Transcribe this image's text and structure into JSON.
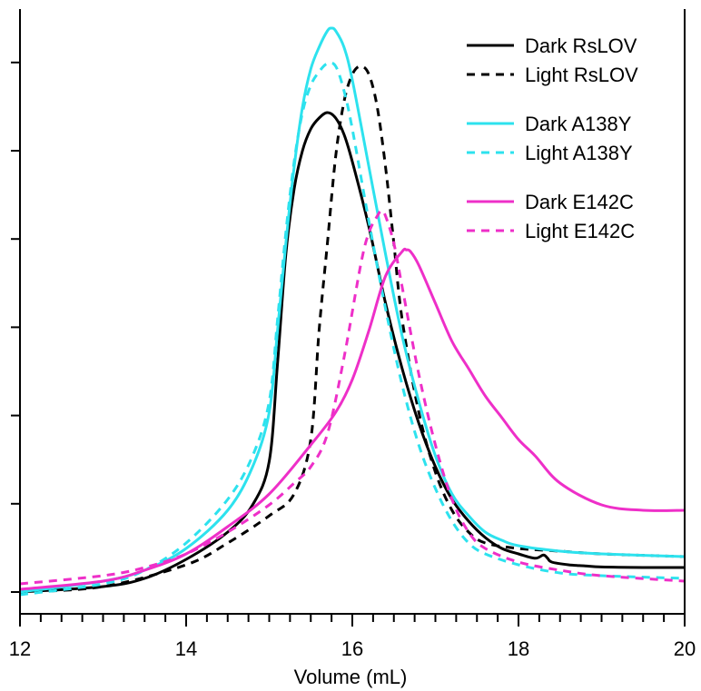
{
  "chart_data": {
    "type": "line",
    "xlabel": "Volume (mL)",
    "ylabel": "",
    "xlim": [
      12,
      20
    ],
    "ylim": [
      -0.05,
      1.05
    ],
    "xticks": [
      12,
      14,
      16,
      18,
      20
    ],
    "xtick_labels": [
      "12",
      "14",
      "16",
      "18",
      "20"
    ],
    "yticks": [
      0,
      0.162,
      0.324,
      0.486,
      0.648,
      0.81,
      0.972
    ],
    "grid": false,
    "legend_position": "top-right",
    "series": [
      {
        "name": "Dark RsLOV",
        "color": "#000000",
        "dash": "solid",
        "x": [
          12,
          13,
          13.5,
          14,
          14.5,
          14.8,
          15,
          15.1,
          15.2,
          15.3,
          15.4,
          15.5,
          15.6,
          15.7,
          15.8,
          15.9,
          16,
          16.2,
          16.4,
          16.6,
          16.8,
          17,
          17.2,
          17.4,
          17.6,
          17.8,
          18,
          18.2,
          18.3,
          18.35,
          18.4,
          18.6,
          18.8,
          19,
          19.5,
          20
        ],
        "y": [
          0,
          0.01,
          0.025,
          0.06,
          0.11,
          0.16,
          0.24,
          0.42,
          0.62,
          0.74,
          0.81,
          0.85,
          0.87,
          0.88,
          0.87,
          0.84,
          0.79,
          0.67,
          0.53,
          0.41,
          0.31,
          0.23,
          0.17,
          0.13,
          0.1,
          0.08,
          0.07,
          0.062,
          0.068,
          0.062,
          0.055,
          0.05,
          0.048,
          0.046,
          0.045,
          0.045
        ]
      },
      {
        "name": "Light RsLOV",
        "color": "#000000",
        "dash": "dashed",
        "x": [
          12,
          13,
          14,
          14.5,
          15,
          15.3,
          15.5,
          15.6,
          15.7,
          15.8,
          15.9,
          16,
          16.1,
          16.2,
          16.3,
          16.4,
          16.5,
          16.6,
          16.8,
          17,
          17.2,
          17.4,
          17.6,
          18,
          18.5,
          19,
          20
        ],
        "y": [
          0,
          0.01,
          0.05,
          0.09,
          0.14,
          0.18,
          0.28,
          0.48,
          0.64,
          0.8,
          0.9,
          0.95,
          0.965,
          0.95,
          0.89,
          0.78,
          0.64,
          0.5,
          0.33,
          0.22,
          0.15,
          0.11,
          0.09,
          0.08,
          0.075,
          0.07,
          0.065
        ]
      },
      {
        "name": "Dark A138Y",
        "color": "#2de2ee",
        "dash": "solid",
        "x": [
          12,
          13,
          13.5,
          14,
          14.5,
          14.8,
          15,
          15.1,
          15.2,
          15.3,
          15.4,
          15.5,
          15.6,
          15.7,
          15.75,
          15.8,
          15.9,
          16,
          16.2,
          16.4,
          16.6,
          16.8,
          17,
          17.2,
          17.4,
          17.6,
          17.8,
          18,
          18.5,
          19,
          20
        ],
        "y": [
          0,
          0.02,
          0.04,
          0.08,
          0.15,
          0.23,
          0.33,
          0.48,
          0.64,
          0.78,
          0.89,
          0.96,
          1.0,
          1.03,
          1.035,
          1.03,
          1.0,
          0.94,
          0.78,
          0.62,
          0.47,
          0.35,
          0.25,
          0.18,
          0.14,
          0.11,
          0.095,
          0.085,
          0.075,
          0.07,
          0.065
        ]
      },
      {
        "name": "Light A138Y",
        "color": "#2de2ee",
        "dash": "dashed",
        "x": [
          12,
          13,
          13.5,
          14,
          14.5,
          14.8,
          15,
          15.1,
          15.2,
          15.3,
          15.4,
          15.5,
          15.6,
          15.7,
          15.8,
          15.9,
          16,
          16.2,
          16.4,
          16.6,
          16.8,
          17,
          17.2,
          17.4,
          17.6,
          18,
          18.5,
          19,
          20
        ],
        "y": [
          -0.005,
          0.015,
          0.04,
          0.09,
          0.17,
          0.25,
          0.35,
          0.5,
          0.66,
          0.79,
          0.88,
          0.93,
          0.955,
          0.97,
          0.965,
          0.92,
          0.85,
          0.68,
          0.52,
          0.38,
          0.27,
          0.19,
          0.13,
          0.09,
          0.07,
          0.05,
          0.035,
          0.03,
          0.025
        ]
      },
      {
        "name": "Dark E142C",
        "color": "#ee2fc8",
        "dash": "solid",
        "x": [
          12,
          13,
          13.5,
          14,
          14.5,
          15,
          15.5,
          15.8,
          16,
          16.2,
          16.4,
          16.6,
          16.65,
          16.7,
          16.8,
          17,
          17.2,
          17.4,
          17.6,
          17.8,
          18,
          18.2,
          18.5,
          19,
          19.5,
          20
        ],
        "y": [
          0.005,
          0.02,
          0.04,
          0.07,
          0.12,
          0.18,
          0.27,
          0.33,
          0.39,
          0.48,
          0.58,
          0.625,
          0.628,
          0.625,
          0.6,
          0.53,
          0.46,
          0.41,
          0.36,
          0.32,
          0.28,
          0.25,
          0.2,
          0.16,
          0.15,
          0.15
        ]
      },
      {
        "name": "Light E142C",
        "color": "#ee2fc8",
        "dash": "dashed",
        "x": [
          12,
          13,
          13.5,
          14,
          14.5,
          15,
          15.3,
          15.5,
          15.7,
          15.9,
          16.1,
          16.2,
          16.3,
          16.35,
          16.4,
          16.5,
          16.6,
          16.8,
          17,
          17.2,
          17.4,
          17.6,
          18,
          18.5,
          19,
          20
        ],
        "y": [
          0.015,
          0.03,
          0.045,
          0.07,
          0.11,
          0.16,
          0.2,
          0.23,
          0.29,
          0.43,
          0.6,
          0.66,
          0.69,
          0.7,
          0.69,
          0.64,
          0.56,
          0.4,
          0.27,
          0.17,
          0.11,
          0.08,
          0.055,
          0.04,
          0.03,
          0.02
        ]
      }
    ],
    "legend_groups": [
      [
        0,
        1
      ],
      [
        2,
        3
      ],
      [
        4,
        5
      ]
    ]
  }
}
